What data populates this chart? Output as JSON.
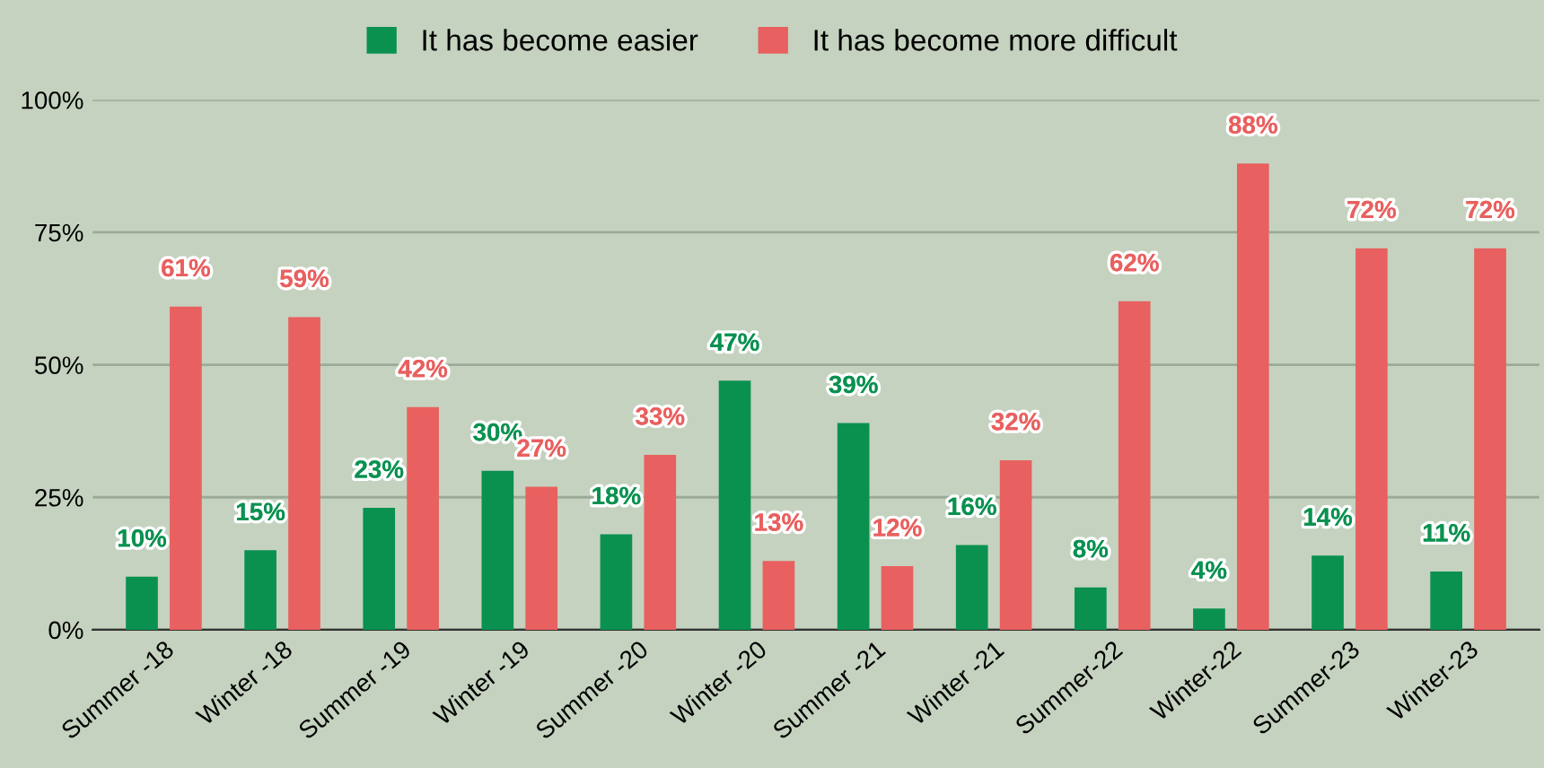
{
  "chart_data": {
    "type": "bar",
    "categories": [
      "Summer -18",
      "Winter -18",
      "Summer -19",
      "Winter -19",
      "Summer -20",
      "Winter -20",
      "Summer -21",
      "Winter -21",
      "Summer-22",
      "Winter-22",
      "Summer-23",
      "Winter-23"
    ],
    "series": [
      {
        "name": "It has become easier",
        "color": "#0a9150",
        "values": [
          10,
          15,
          23,
          30,
          18,
          47,
          39,
          16,
          8,
          4,
          14,
          11
        ],
        "value_labels": [
          "10%",
          "15%",
          "23%",
          "30%",
          "18%",
          "47%",
          "39%",
          "16%",
          "8%",
          "4%",
          "14%",
          "11%"
        ]
      },
      {
        "name": "It has become more difficult",
        "color": "#e8605f",
        "values": [
          61,
          59,
          42,
          27,
          33,
          13,
          12,
          32,
          62,
          88,
          72,
          72
        ],
        "value_labels": [
          "61%",
          "59%",
          "42%",
          "27%",
          "33%",
          "13%",
          "12%",
          "32%",
          "62%",
          "88%",
          "72%",
          "72%"
        ]
      }
    ],
    "ylim": [
      0,
      100
    ],
    "yticks": [
      {
        "value": 0,
        "label": "0%"
      },
      {
        "value": 25,
        "label": "25%"
      },
      {
        "value": 50,
        "label": "50%"
      },
      {
        "value": 75,
        "label": "75%"
      },
      {
        "value": 100,
        "label": "100%"
      }
    ],
    "grid": "y",
    "legend": "top"
  }
}
